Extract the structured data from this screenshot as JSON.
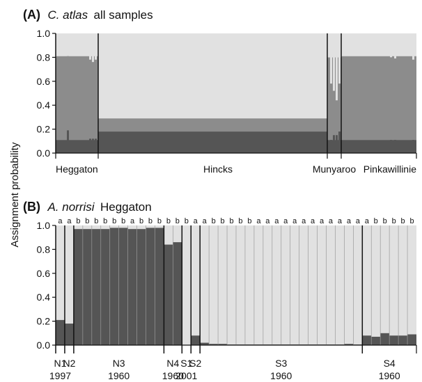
{
  "ylabel": "Assignment probability",
  "colors": {
    "dark": "#555555",
    "mid": "#8c8c8c",
    "light": "#e1e1e1",
    "axis": "#111111"
  },
  "panelA": {
    "letter": "(A)",
    "species": "C. atlas",
    "rest": "all samples",
    "yticks": [
      "0.0",
      "0.2",
      "0.4",
      "0.6",
      "0.8",
      "1.0"
    ],
    "sites": [
      "Heggaton",
      "Hincks",
      "Munyaroo",
      "Pinkawillinie"
    ]
  },
  "panelB": {
    "letter": "(B)",
    "species": "A. norrisi",
    "rest": "Heggaton",
    "yticks": [
      "0.0",
      "0.2",
      "0.4",
      "0.6",
      "0.8",
      "1.0"
    ],
    "groups": [
      {
        "name": "N1",
        "year": "1997"
      },
      {
        "name": "N2",
        "year": ""
      },
      {
        "name": "N3",
        "year": "1960"
      },
      {
        "name": "N4",
        "year": "1960"
      },
      {
        "name": "S1",
        "year": "2001"
      },
      {
        "name": "S2",
        "year": ""
      },
      {
        "name": "S3",
        "year": "1960"
      },
      {
        "name": "S4",
        "year": "1960"
      }
    ]
  },
  "chart_data": [
    {
      "type": "bar",
      "title": "(A) C. atlas all samples",
      "ylabel": "Assignment probability",
      "ylim": [
        0,
        1
      ],
      "stacked": true,
      "categories": [
        "Heggaton",
        "Hincks",
        "Munyaroo",
        "Pinkawillinie"
      ],
      "series": [
        {
          "values": [
            0.11,
            0.18,
            0.11,
            0.11
          ]
        },
        {
          "values": [
            0.7,
            0.11,
            0.69,
            0.7
          ]
        },
        {
          "values": [
            0.19,
            0.71,
            0.2,
            0.19
          ]
        }
      ]
    },
    {
      "type": "bar",
      "title": "(B) A. norrisi Heggaton",
      "ylabel": "Assignment probability",
      "ylim": [
        0,
        1
      ],
      "stacked": true,
      "individual_values": [
        0.21,
        0.18,
        0.97,
        0.97,
        0.97,
        0.97,
        0.98,
        0.98,
        0.97,
        0.97,
        0.98,
        0.98,
        0.84,
        0.86,
        0.0,
        0.08,
        0.02,
        0.01,
        0.01,
        0.005,
        0.005,
        0.005,
        0.005,
        0.005,
        0.005,
        0.005,
        0.005,
        0.005,
        0.005,
        0.005,
        0.005,
        0.005,
        0.01,
        0.005,
        0.08,
        0.07,
        0.1,
        0.08,
        0.08,
        0.09
      ],
      "cluster_labels": [
        "a",
        "a",
        "b",
        "b",
        "b",
        "b",
        "b",
        "b",
        "a",
        "b",
        "b",
        "b",
        "b",
        "b",
        "b",
        "a",
        "a",
        "b",
        "b",
        "b",
        "b",
        "b",
        "a",
        "a",
        "a",
        "a",
        "a",
        "a",
        "a",
        "a",
        "a",
        "a",
        "a",
        "a",
        "a",
        "b",
        "b",
        "b",
        "b",
        "b"
      ],
      "groups": [
        {
          "name": "N1",
          "year": "1997",
          "n": 1
        },
        {
          "name": "N2",
          "year": "",
          "n": 1
        },
        {
          "name": "N3",
          "year": "1960",
          "n": 10
        },
        {
          "name": "N4",
          "year": "1960",
          "n": 2
        },
        {
          "name": "S1",
          "year": "2001",
          "n": 1
        },
        {
          "name": "S2",
          "year": "",
          "n": 1
        },
        {
          "name": "S3",
          "year": "1960",
          "n": 18
        },
        {
          "name": "S4",
          "year": "1960",
          "n": 6
        }
      ]
    }
  ]
}
